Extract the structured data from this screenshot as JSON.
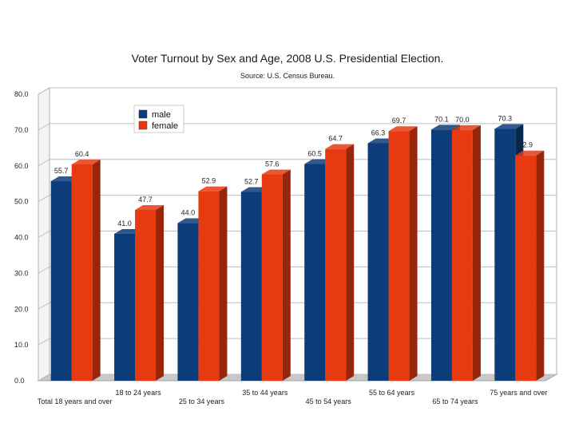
{
  "chart_data": {
    "type": "bar",
    "title": "Voter Turnout by Sex and Age, 2008 U.S. Presidential Election.",
    "subtitle": "Source: U.S. Census Bureau.",
    "categories": [
      "Total 18 years and over",
      "18 to 24 years",
      "25 to 34 years",
      "35 to 44 years",
      "45 to 54 years",
      "55 to 64 years",
      "65 to 74 years",
      "75 years and over"
    ],
    "series": [
      {
        "name": "male",
        "color": "#0d3c7a",
        "values": [
          55.7,
          41.0,
          44.0,
          52.7,
          60.5,
          66.3,
          70.1,
          70.3
        ]
      },
      {
        "name": "female",
        "color": "#e83a10",
        "values": [
          60.4,
          47.7,
          52.9,
          57.6,
          64.7,
          69.7,
          70.0,
          62.9
        ]
      }
    ],
    "value_labels": {
      "male": [
        "55.7",
        "41.0",
        "44.0",
        "52.7",
        "60.5",
        "66.3",
        "70.1",
        "70.3"
      ],
      "female": [
        "60.4",
        "47.7",
        "52.9",
        "57.6",
        "64.7",
        "69.7",
        "70.0",
        "62.9"
      ]
    },
    "yticks": [
      "0.0",
      "10.0",
      "20.0",
      "30.0",
      "40.0",
      "50.0",
      "60.0",
      "70.0",
      "80.0"
    ],
    "ylim": [
      0,
      80
    ],
    "grid": true,
    "legend_position": "top-left",
    "style": "3d"
  }
}
